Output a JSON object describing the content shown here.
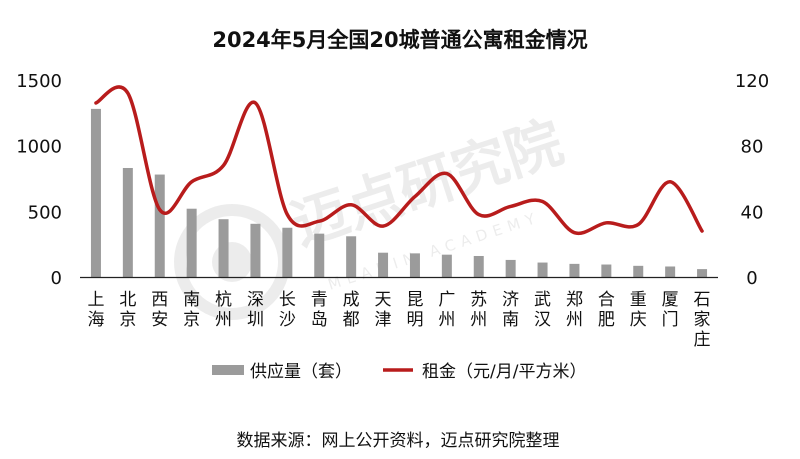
{
  "chart_data": {
    "type": "bar",
    "title": "2024年5月全国20城普通公寓租金情况",
    "categories": [
      "上海",
      "北京",
      "西安",
      "南京",
      "杭州",
      "深圳",
      "长沙",
      "青岛",
      "成都",
      "天津",
      "昆明",
      "广州",
      "苏州",
      "济南",
      "武汉",
      "郑州",
      "合肥",
      "重庆",
      "厦门",
      "石家庄"
    ],
    "series": [
      {
        "name": "供应量（套）",
        "type": "bar",
        "axis": "left",
        "color": "#9b9b9b",
        "values": [
          1280,
          830,
          780,
          520,
          440,
          405,
          375,
          330,
          310,
          185,
          180,
          170,
          160,
          130,
          110,
          100,
          95,
          85,
          80,
          60
        ]
      },
      {
        "name": "租金（元/月/平方米）",
        "type": "line",
        "axis": "right",
        "color": "#b81c1c",
        "values": [
          106,
          112,
          41,
          58,
          68,
          106,
          38,
          34,
          44,
          31,
          49,
          63,
          38,
          43,
          46,
          27,
          33,
          32,
          58,
          28
        ]
      }
    ],
    "y_left": {
      "min": 0,
      "max": 1500,
      "ticks": [
        0,
        500,
        1000,
        1500
      ]
    },
    "y_right": {
      "min": 0,
      "max": 120,
      "ticks": [
        0,
        40,
        80,
        120
      ]
    },
    "grid": false,
    "legend_position": "bottom"
  },
  "watermark": {
    "cn": "迈点研究院",
    "en": "MEADIN ACADEMY"
  },
  "source": "数据来源：网上公开资料，迈点研究院整理"
}
